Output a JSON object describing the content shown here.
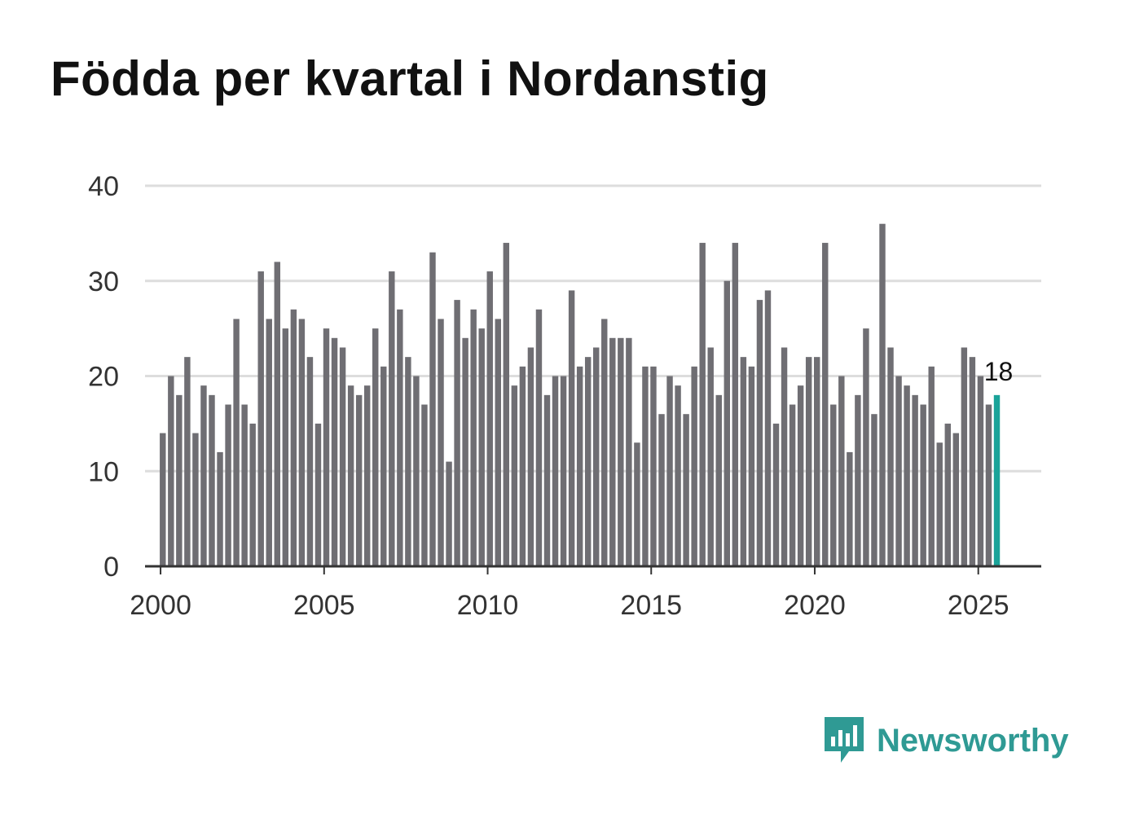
{
  "title": "Födda per kvartal i Nordanstig",
  "brand": {
    "name": "Newsworthy",
    "color": "#2f9a94"
  },
  "colors": {
    "bar": "#6f6e73",
    "highlight": "#1aa399",
    "grid": "#dddddd",
    "axis": "#333333"
  },
  "chart_data": {
    "type": "bar",
    "title": "Födda per kvartal i Nordanstig",
    "xlabel": "",
    "ylabel": "",
    "ylim": [
      0,
      40
    ],
    "yticks": [
      0,
      10,
      20,
      30,
      40
    ],
    "xticks": [
      2000,
      2005,
      2010,
      2015,
      2020,
      2025
    ],
    "xlim": [
      1999.6,
      2027.0
    ],
    "start_year": 2000,
    "start_quarter": 1,
    "highlight_last": true,
    "last_value_label": "18",
    "values": [
      14,
      20,
      18,
      22,
      14,
      19,
      18,
      12,
      17,
      26,
      17,
      15,
      31,
      26,
      32,
      25,
      27,
      26,
      22,
      15,
      25,
      24,
      23,
      19,
      18,
      19,
      25,
      21,
      31,
      27,
      22,
      20,
      17,
      33,
      26,
      11,
      28,
      24,
      27,
      25,
      31,
      26,
      34,
      19,
      21,
      23,
      27,
      18,
      20,
      20,
      29,
      21,
      22,
      23,
      26,
      24,
      24,
      24,
      13,
      21,
      21,
      16,
      20,
      19,
      16,
      21,
      34,
      23,
      18,
      30,
      34,
      22,
      21,
      28,
      29,
      15,
      23,
      17,
      19,
      22,
      22,
      34,
      17,
      20,
      12,
      18,
      25,
      16,
      36,
      23,
      20,
      19,
      18,
      17,
      21,
      13,
      15,
      14,
      23,
      22,
      20,
      17,
      18
    ]
  }
}
